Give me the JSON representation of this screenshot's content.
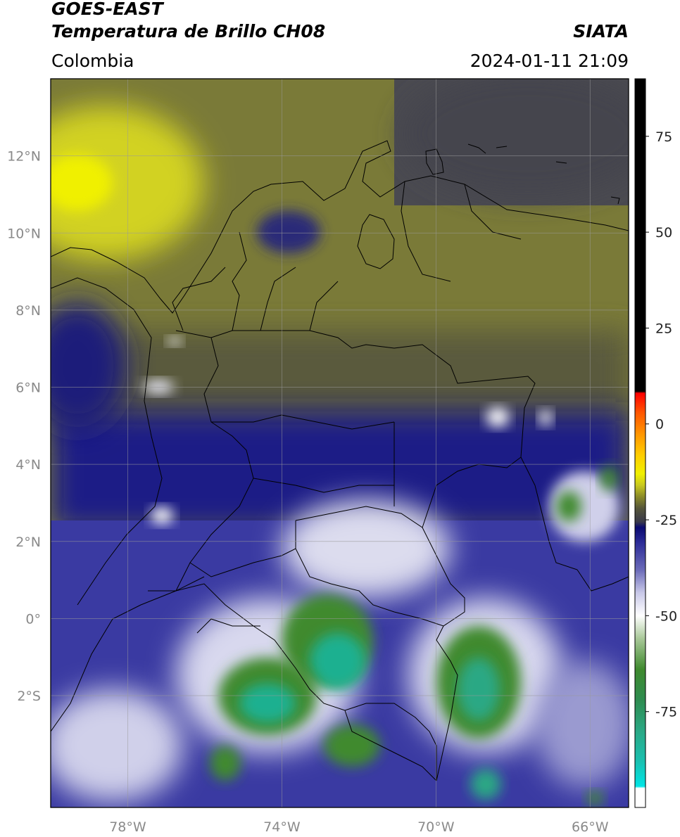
{
  "header": {
    "satellite": "GOES-EAST",
    "product": "Temperatura de Brillo CH08",
    "brand": "SIATA",
    "region": "Colombia",
    "datetime": "2024-01-11 21:09"
  },
  "map": {
    "lon_range": [
      -80,
      -65
    ],
    "lat_range": [
      -4.9,
      14.0
    ],
    "lat_ticks": [
      {
        "value": 12,
        "label": "12°N"
      },
      {
        "value": 10,
        "label": "10°N"
      },
      {
        "value": 8,
        "label": "8°N"
      },
      {
        "value": 6,
        "label": "6°N"
      },
      {
        "value": 4,
        "label": "4°N"
      },
      {
        "value": 2,
        "label": "2°N"
      },
      {
        "value": 0,
        "label": "0°"
      },
      {
        "value": -2,
        "label": "2°S"
      }
    ],
    "lon_ticks": [
      {
        "value": -78,
        "label": "78°W"
      },
      {
        "value": -74,
        "label": "74°W"
      },
      {
        "value": -70,
        "label": "70°W"
      },
      {
        "value": -66,
        "label": "66°W"
      }
    ],
    "gridlines": true
  },
  "colorbar": {
    "range": [
      -100,
      90
    ],
    "ticks": [
      {
        "value": 75,
        "label": "75"
      },
      {
        "value": 50,
        "label": "50"
      },
      {
        "value": 25,
        "label": "25"
      },
      {
        "value": 0,
        "label": "0"
      },
      {
        "value": -25,
        "label": "-25"
      },
      {
        "value": -50,
        "label": "-50"
      },
      {
        "value": -75,
        "label": "-75"
      }
    ],
    "stops": [
      {
        "value": -100,
        "color": "#ffffff"
      },
      {
        "value": -95,
        "color": "#ffffff"
      },
      {
        "value": -94.5,
        "color": "#00e5e5"
      },
      {
        "value": -88,
        "color": "#1ac0b0"
      },
      {
        "value": -80,
        "color": "#2aa884"
      },
      {
        "value": -72,
        "color": "#2e8c50"
      },
      {
        "value": -64,
        "color": "#3f8a2e"
      },
      {
        "value": -56,
        "color": "#a8c898"
      },
      {
        "value": -50,
        "color": "#ffffff"
      },
      {
        "value": -44,
        "color": "#c8c8e8"
      },
      {
        "value": -38,
        "color": "#6a6ab8"
      },
      {
        "value": -31,
        "color": "#2c2c98"
      },
      {
        "value": -27,
        "color": "#0a0a70"
      },
      {
        "value": -25.5,
        "color": "#3a3a4a"
      },
      {
        "value": -22,
        "color": "#55553a"
      },
      {
        "value": -19,
        "color": "#8a8a28"
      },
      {
        "value": -16,
        "color": "#c8c820"
      },
      {
        "value": -13,
        "color": "#f0f000"
      },
      {
        "value": -8,
        "color": "#ffcc00"
      },
      {
        "value": -3,
        "color": "#ff9900"
      },
      {
        "value": 3,
        "color": "#ff5500"
      },
      {
        "value": 8,
        "color": "#ff0000"
      },
      {
        "value": 8.5,
        "color": "#000000"
      },
      {
        "value": 90,
        "color": "#000000"
      }
    ]
  }
}
